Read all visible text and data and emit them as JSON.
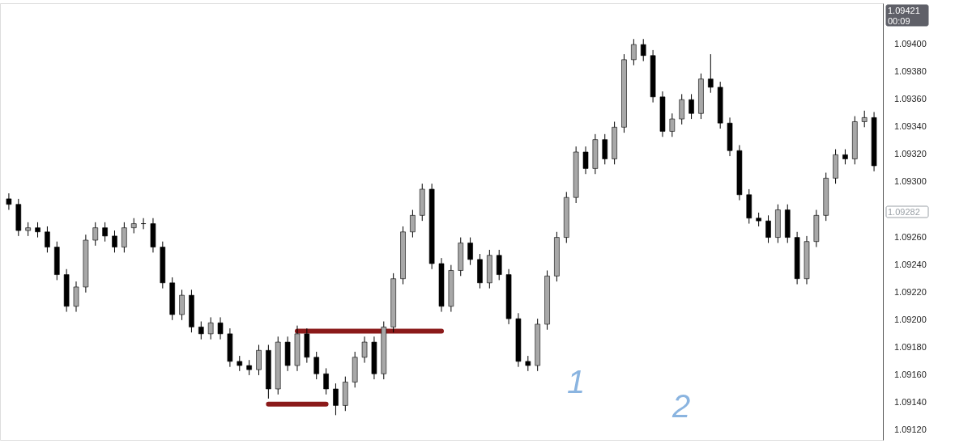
{
  "chart_data": {
    "type": "candlestick",
    "categories": [
      null,
      null,
      null,
      null,
      null,
      null,
      null,
      null,
      null,
      null,
      null,
      null,
      null,
      null,
      null,
      null,
      null,
      null,
      null,
      null,
      null,
      null,
      null,
      null,
      null,
      null,
      null,
      null,
      null,
      null,
      null,
      null,
      null,
      null,
      null,
      null,
      null,
      null,
      null,
      null,
      null,
      null,
      null,
      null,
      null,
      null,
      null,
      null,
      null,
      null,
      null,
      null,
      null,
      null,
      null,
      null,
      null,
      null,
      null,
      null,
      null,
      null,
      null,
      null,
      null,
      null,
      null,
      null,
      null,
      null,
      null,
      null,
      null,
      null,
      null,
      null,
      null,
      null,
      null,
      null,
      null,
      null,
      null,
      null,
      null,
      null,
      null,
      null,
      null,
      null,
      null
    ],
    "ohlc": [
      [
        1.09288,
        1.09292,
        1.0928,
        1.09284
      ],
      [
        1.09284,
        1.09288,
        1.09261,
        1.09265
      ],
      [
        1.09265,
        1.09271,
        1.09261,
        1.09267
      ],
      [
        1.09267,
        1.09271,
        1.0926,
        1.09264
      ],
      [
        1.09264,
        1.09268,
        1.09249,
        1.09253
      ],
      [
        1.09253,
        1.09257,
        1.09229,
        1.09233
      ],
      [
        1.09233,
        1.09237,
        1.09206,
        1.0921
      ],
      [
        1.0921,
        1.09228,
        1.09206,
        1.09224
      ],
      [
        1.09224,
        1.09262,
        1.0922,
        1.09258
      ],
      [
        1.09258,
        1.09271,
        1.09254,
        1.09267
      ],
      [
        1.09267,
        1.09271,
        1.09257,
        1.09261
      ],
      [
        1.09261,
        1.09265,
        1.09249,
        1.09253
      ],
      [
        1.09253,
        1.09271,
        1.09249,
        1.09267
      ],
      [
        1.09267,
        1.09274,
        1.09263,
        1.0927
      ],
      [
        1.0927,
        1.09274,
        1.09266,
        1.0927
      ],
      [
        1.0927,
        1.09274,
        1.09249,
        1.09253
      ],
      [
        1.09253,
        1.09257,
        1.09223,
        1.09227
      ],
      [
        1.09227,
        1.09231,
        1.092,
        1.09204
      ],
      [
        1.09204,
        1.09222,
        1.092,
        1.09218
      ],
      [
        1.09218,
        1.09222,
        1.09191,
        1.09195
      ],
      [
        1.09195,
        1.09199,
        1.09186,
        1.0919
      ],
      [
        1.0919,
        1.09202,
        1.09186,
        1.09198
      ],
      [
        1.09198,
        1.09202,
        1.09186,
        1.0919
      ],
      [
        1.0919,
        1.09194,
        1.09166,
        1.0917
      ],
      [
        1.0917,
        1.09174,
        1.09163,
        1.09167
      ],
      [
        1.09167,
        1.09171,
        1.0916,
        1.09164
      ],
      [
        1.09164,
        1.09182,
        1.0916,
        1.09178
      ],
      [
        1.09178,
        1.09182,
        1.09143,
        1.0915
      ],
      [
        1.0915,
        1.09188,
        1.09146,
        1.09184
      ],
      [
        1.09184,
        1.09188,
        1.09163,
        1.09167
      ],
      [
        1.09167,
        1.09196,
        1.09163,
        1.0919
      ],
      [
        1.0919,
        1.09194,
        1.09169,
        1.09173
      ],
      [
        1.09173,
        1.09177,
        1.09157,
        1.09161
      ],
      [
        1.09161,
        1.09165,
        1.09146,
        1.0915
      ],
      [
        1.0915,
        1.09154,
        1.09131,
        1.09138
      ],
      [
        1.09138,
        1.09159,
        1.09134,
        1.09155
      ],
      [
        1.09155,
        1.09177,
        1.09151,
        1.09173
      ],
      [
        1.09173,
        1.09188,
        1.09169,
        1.09184
      ],
      [
        1.09184,
        1.09188,
        1.09157,
        1.09161
      ],
      [
        1.09161,
        1.09199,
        1.09157,
        1.09195
      ],
      [
        1.09195,
        1.09234,
        1.09191,
        1.0923
      ],
      [
        1.0923,
        1.09268,
        1.09226,
        1.09264
      ],
      [
        1.09264,
        1.0928,
        1.0926,
        1.09276
      ],
      [
        1.09276,
        1.09299,
        1.09272,
        1.09295
      ],
      [
        1.09295,
        1.09299,
        1.09237,
        1.09241
      ],
      [
        1.09241,
        1.09245,
        1.09206,
        1.0921
      ],
      [
        1.0921,
        1.0924,
        1.09206,
        1.09236
      ],
      [
        1.09236,
        1.0926,
        1.09232,
        1.09256
      ],
      [
        1.09256,
        1.0926,
        1.0924,
        1.09244
      ],
      [
        1.09244,
        1.09248,
        1.09223,
        1.09227
      ],
      [
        1.09227,
        1.09251,
        1.09223,
        1.09247
      ],
      [
        1.09247,
        1.09251,
        1.09229,
        1.09233
      ],
      [
        1.09233,
        1.09237,
        1.09197,
        1.09201
      ],
      [
        1.09201,
        1.09205,
        1.09166,
        1.0917
      ],
      [
        1.0917,
        1.09174,
        1.09163,
        1.09167
      ],
      [
        1.09167,
        1.09201,
        1.09163,
        1.09197
      ],
      [
        1.09197,
        1.09236,
        1.09193,
        1.09232
      ],
      [
        1.09232,
        1.09264,
        1.09228,
        1.0926
      ],
      [
        1.0926,
        1.09293,
        1.09256,
        1.09289
      ],
      [
        1.09289,
        1.09326,
        1.09285,
        1.09322
      ],
      [
        1.09322,
        1.09326,
        1.09306,
        1.0931
      ],
      [
        1.0931,
        1.09335,
        1.09306,
        1.09331
      ],
      [
        1.09331,
        1.09335,
        1.09313,
        1.09317
      ],
      [
        1.09317,
        1.09344,
        1.09313,
        1.0934
      ],
      [
        1.0934,
        1.09393,
        1.09336,
        1.09389
      ],
      [
        1.09389,
        1.09404,
        1.09385,
        1.094
      ],
      [
        1.094,
        1.09404,
        1.09388,
        1.09392
      ],
      [
        1.09392,
        1.09396,
        1.09358,
        1.09362
      ],
      [
        1.09362,
        1.09366,
        1.09333,
        1.09337
      ],
      [
        1.09337,
        1.0935,
        1.09333,
        1.09346
      ],
      [
        1.09346,
        1.09364,
        1.09342,
        1.0936
      ],
      [
        1.0936,
        1.09364,
        1.09346,
        1.0935
      ],
      [
        1.0935,
        1.09379,
        1.09346,
        1.09375
      ],
      [
        1.09375,
        1.09393,
        1.09365,
        1.09369
      ],
      [
        1.09369,
        1.09373,
        1.09339,
        1.09343
      ],
      [
        1.09343,
        1.09347,
        1.09319,
        1.09323
      ],
      [
        1.09323,
        1.09327,
        1.09287,
        1.09291
      ],
      [
        1.09291,
        1.09295,
        1.0927,
        1.09274
      ],
      [
        1.09274,
        1.09278,
        1.09268,
        1.09272
      ],
      [
        1.09272,
        1.09276,
        1.09256,
        1.0926
      ],
      [
        1.0926,
        1.09284,
        1.09256,
        1.0928
      ],
      [
        1.0928,
        1.09284,
        1.09256,
        1.0926
      ],
      [
        1.0926,
        1.09264,
        1.09226,
        1.0923
      ],
      [
        1.0923,
        1.09261,
        1.09226,
        1.09257
      ],
      [
        1.09257,
        1.0928,
        1.09253,
        1.09276
      ],
      [
        1.09276,
        1.09307,
        1.09272,
        1.09303
      ],
      [
        1.09303,
        1.09324,
        1.09299,
        1.0932
      ],
      [
        1.0932,
        1.09324,
        1.09313,
        1.09317
      ],
      [
        1.09317,
        1.09348,
        1.09313,
        1.09344
      ],
      [
        1.09344,
        1.09352,
        1.0934,
        1.09347
      ],
      [
        1.09347,
        1.09351,
        1.09308,
        1.09312
      ]
    ],
    "series": [
      {
        "type": "line",
        "color": "#8b1a1a",
        "values": [
          null,
          null,
          null,
          null,
          null,
          null,
          null,
          null,
          null,
          null,
          null,
          null,
          null,
          null,
          null,
          null,
          null,
          null,
          null,
          null,
          null,
          null,
          null,
          null,
          null,
          null,
          null,
          null,
          null,
          null,
          1.09192,
          1.09192,
          1.09192,
          1.09192,
          1.09192,
          1.09192,
          1.09192,
          1.09192,
          1.09192,
          1.09192,
          1.09192,
          1.09192,
          1.09192,
          1.09192,
          1.09192,
          1.09192,
          null,
          null,
          null,
          null,
          null,
          null,
          null,
          null,
          null,
          null,
          null,
          null,
          null,
          null,
          null,
          null,
          null,
          null,
          null,
          null,
          null,
          null,
          null,
          null,
          null,
          null,
          null,
          null,
          null,
          null,
          null,
          null,
          null,
          null,
          null,
          null,
          null,
          null,
          null,
          null,
          null,
          null,
          null,
          null,
          null
        ]
      },
      {
        "type": "line",
        "color": "#8b1a1a",
        "values": [
          null,
          null,
          null,
          null,
          null,
          null,
          null,
          null,
          null,
          null,
          null,
          null,
          null,
          null,
          null,
          null,
          null,
          null,
          null,
          null,
          null,
          null,
          null,
          null,
          null,
          null,
          null,
          1.09139,
          1.09139,
          1.09139,
          1.09139,
          1.09139,
          1.09139,
          1.09139,
          null,
          null,
          null,
          null,
          null,
          null,
          null,
          null,
          null,
          null,
          null,
          null,
          null,
          null,
          null,
          null,
          null,
          null,
          null,
          null,
          null,
          null,
          null,
          null,
          null,
          null,
          null,
          null,
          null,
          null,
          null,
          null,
          null,
          null,
          null,
          null,
          null,
          null,
          null,
          null,
          null,
          null,
          null,
          null,
          null,
          null,
          null,
          null,
          null,
          null,
          null,
          null,
          null,
          null,
          null,
          null,
          null
        ]
      }
    ],
    "ylim": [
      1.09113,
      1.0943
    ],
    "yticks": [
      {
        "value": 1.0912,
        "label": "1.09120"
      },
      {
        "value": 1.0914,
        "label": "1.09140"
      },
      {
        "value": 1.0916,
        "label": "1.09160"
      },
      {
        "value": 1.0918,
        "label": "1.09180"
      },
      {
        "value": 1.092,
        "label": "1.09200"
      },
      {
        "value": 1.0922,
        "label": "1.09220"
      },
      {
        "value": 1.0924,
        "label": "1.09240"
      },
      {
        "value": 1.0926,
        "label": "1.09260"
      },
      {
        "value": 1.093,
        "label": "1.09300"
      },
      {
        "value": 1.0932,
        "label": "1.09320"
      },
      {
        "value": 1.0934,
        "label": "1.09340"
      },
      {
        "value": 1.0936,
        "label": "1.09360"
      },
      {
        "value": 1.0938,
        "label": "1.09380"
      },
      {
        "value": 1.094,
        "label": "1.09400"
      }
    ],
    "annotations": [
      "1.09421",
      "00:09",
      "1.09282",
      "1",
      "2"
    ],
    "tick_labels": "y",
    "grid": false
  }
}
